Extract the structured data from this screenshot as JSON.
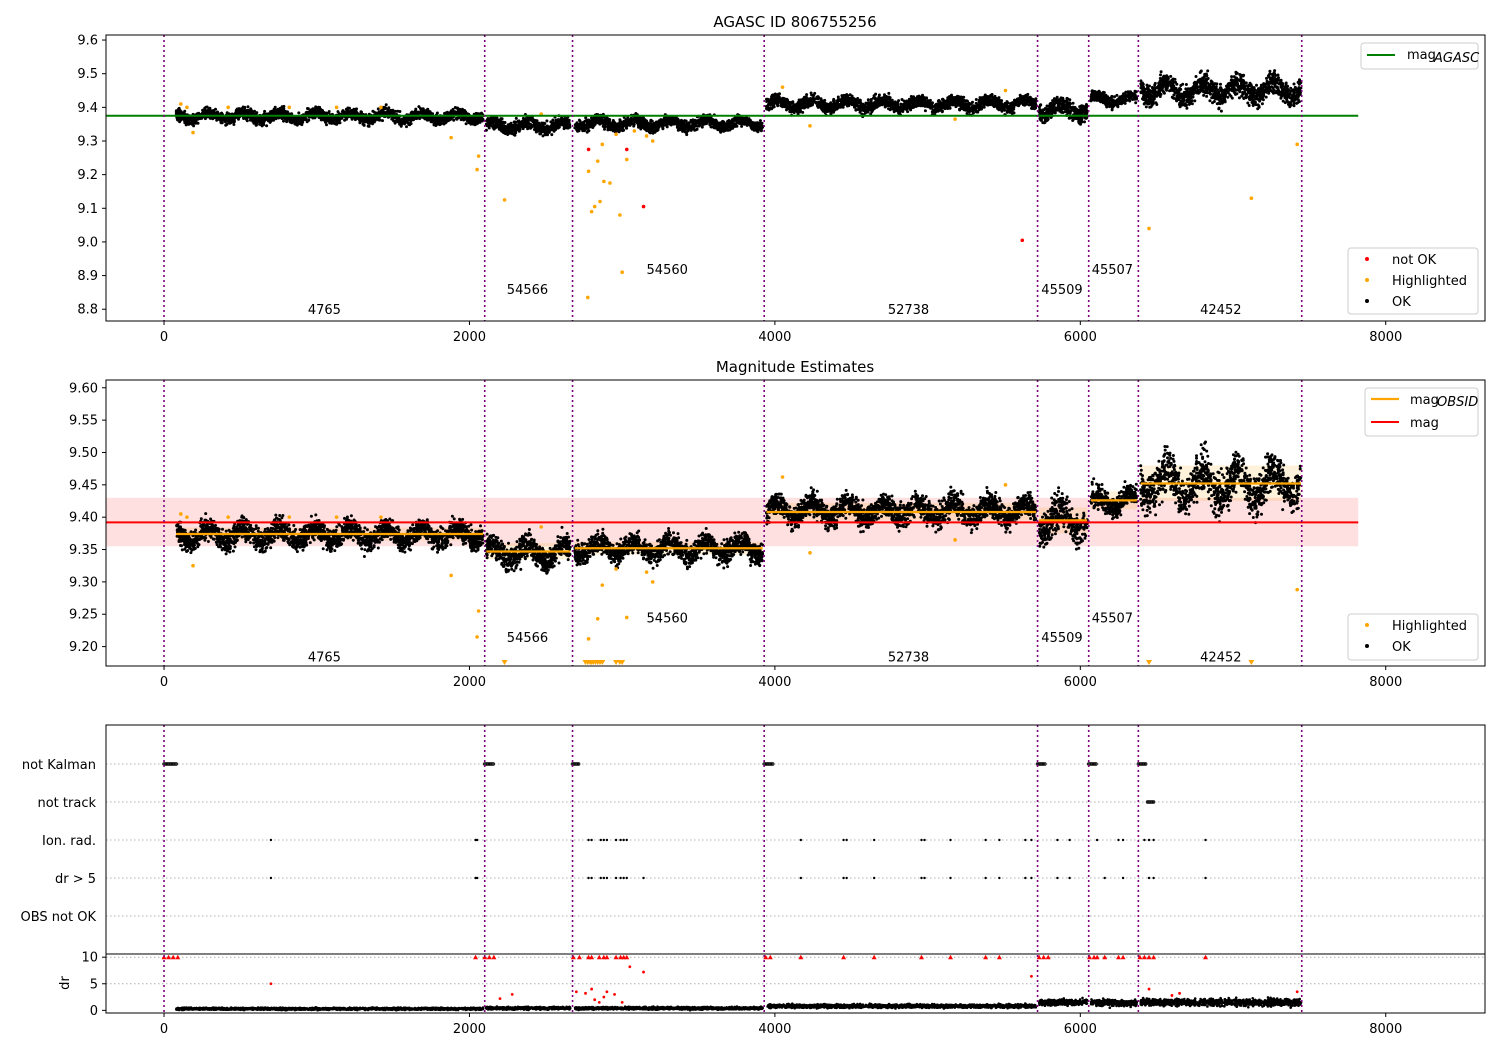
{
  "chart_data": [
    {
      "type": "scatter",
      "title": "AGASC ID 806755256",
      "xlabel": "",
      "ylabel": "",
      "xlim": [
        -380,
        8650
      ],
      "ylim": [
        8.765,
        9.615
      ],
      "xticks": [
        "0",
        "2000",
        "4000",
        "6000",
        "8000"
      ],
      "yticks": [
        "8.8",
        "8.9",
        "9.0",
        "9.1",
        "9.2",
        "9.3",
        "9.4",
        "9.5",
        "9.6"
      ],
      "reference_line": {
        "name": "mag_AGASC",
        "value": 9.375,
        "x_range": [
          -380,
          7820
        ],
        "color": "#008000"
      },
      "observation_boundaries": [
        0,
        2100,
        2675,
        3930,
        5720,
        6055,
        6380,
        7450
      ],
      "obsids": [
        {
          "label": "4765",
          "x": 1050,
          "y": 8.8
        },
        {
          "label": "54566",
          "x": 2380,
          "y": 8.86
        },
        {
          "label": "54560",
          "x": 3295,
          "y": 8.92
        },
        {
          "label": "52738",
          "x": 4875,
          "y": 8.8
        },
        {
          "label": "45509",
          "x": 5880,
          "y": 8.86
        },
        {
          "label": "45507",
          "x": 6210,
          "y": 8.92
        },
        {
          "label": "42452",
          "x": 6920,
          "y": 8.8
        }
      ],
      "ok_segments": [
        {
          "x0": 80,
          "x1": 2090,
          "mean": 9.373,
          "spread": 0.018
        },
        {
          "x0": 2110,
          "x1": 2660,
          "mean": 9.345,
          "spread": 0.02
        },
        {
          "x0": 2690,
          "x1": 3920,
          "mean": 9.352,
          "spread": 0.018
        },
        {
          "x0": 3945,
          "x1": 5710,
          "mean": 9.41,
          "spread": 0.02
        },
        {
          "x0": 5730,
          "x1": 6045,
          "mean": 9.395,
          "spread": 0.03
        },
        {
          "x0": 6070,
          "x1": 6370,
          "mean": 9.425,
          "spread": 0.018
        },
        {
          "x0": 6395,
          "x1": 7445,
          "mean": 9.452,
          "spread": 0.035
        }
      ],
      "highlighted_points": [
        [
          110,
          9.41
        ],
        [
          150,
          9.4
        ],
        [
          190,
          9.325
        ],
        [
          420,
          9.4
        ],
        [
          820,
          9.4
        ],
        [
          1130,
          9.4
        ],
        [
          1420,
          9.4
        ],
        [
          1880,
          9.31
        ],
        [
          2050,
          9.215
        ],
        [
          2060,
          9.255
        ],
        [
          2230,
          9.125
        ],
        [
          2470,
          9.38
        ],
        [
          2775,
          8.835
        ],
        [
          2780,
          9.21
        ],
        [
          2800,
          9.09
        ],
        [
          2820,
          9.105
        ],
        [
          2840,
          9.24
        ],
        [
          2855,
          9.12
        ],
        [
          2870,
          9.29
        ],
        [
          2880,
          9.18
        ],
        [
          2920,
          9.175
        ],
        [
          2960,
          9.32
        ],
        [
          2985,
          9.08
        ],
        [
          3000,
          8.91
        ],
        [
          3030,
          9.245
        ],
        [
          3080,
          9.33
        ],
        [
          3160,
          9.315
        ],
        [
          3200,
          9.3
        ],
        [
          4050,
          9.46
        ],
        [
          4230,
          9.345
        ],
        [
          5180,
          9.365
        ],
        [
          5510,
          9.45
        ],
        [
          6450,
          9.04
        ],
        [
          7120,
          9.13
        ],
        [
          7420,
          9.29
        ]
      ],
      "not_ok_points": [
        [
          2780,
          9.275
        ],
        [
          3030,
          9.275
        ],
        [
          3140,
          9.105
        ],
        [
          5620,
          9.005
        ]
      ],
      "legends": [
        {
          "position": "upper-right",
          "entries": [
            {
              "label": "mag",
              "sub": "AGASC",
              "color": "#008000",
              "marker": "line"
            }
          ]
        },
        {
          "position": "lower-right",
          "entries": [
            {
              "label": "not OK",
              "color": "#ff0000",
              "marker": "dot"
            },
            {
              "label": "Highlighted",
              "color": "#ffa500",
              "marker": "dot"
            },
            {
              "label": "OK",
              "color": "#000000",
              "marker": "dot"
            }
          ]
        }
      ]
    },
    {
      "type": "scatter",
      "title": "Magnitude Estimates",
      "xlabel": "",
      "ylabel": "",
      "xlim": [
        -380,
        8650
      ],
      "ylim": [
        9.17,
        9.612
      ],
      "xticks": [
        "0",
        "2000",
        "4000",
        "6000",
        "8000"
      ],
      "yticks": [
        "9.20",
        "9.25",
        "9.30",
        "9.35",
        "9.40",
        "9.45",
        "9.50",
        "9.55",
        "9.60"
      ],
      "mag_line": {
        "name": "mag",
        "value": 9.392,
        "band": [
          9.355,
          9.43
        ],
        "x_range": [
          -380,
          7820
        ],
        "color": "#ff0000"
      },
      "mag_obsid_segments": [
        {
          "x0": 80,
          "x1": 2090,
          "value": 9.374
        },
        {
          "x0": 2110,
          "x1": 2660,
          "value": 9.347
        },
        {
          "x0": 2690,
          "x1": 3920,
          "value": 9.352
        },
        {
          "x0": 3945,
          "x1": 5710,
          "value": 9.408
        },
        {
          "x0": 5730,
          "x1": 6045,
          "value": 9.395
        },
        {
          "x0": 6070,
          "x1": 6370,
          "value": 9.426
        },
        {
          "x0": 6395,
          "x1": 7445,
          "value": 9.452
        }
      ],
      "mag_obsid_bands": [
        {
          "x0": 80,
          "x1": 2090,
          "lo": 9.364,
          "hi": 9.384
        },
        {
          "x0": 2110,
          "x1": 2660,
          "lo": 9.335,
          "hi": 9.36
        },
        {
          "x0": 2690,
          "x1": 3920,
          "lo": 9.342,
          "hi": 9.362
        },
        {
          "x0": 3945,
          "x1": 5710,
          "lo": 9.395,
          "hi": 9.422
        },
        {
          "x0": 5730,
          "x1": 6045,
          "lo": 9.375,
          "hi": 9.415
        },
        {
          "x0": 6070,
          "x1": 6370,
          "lo": 9.412,
          "hi": 9.44
        },
        {
          "x0": 6395,
          "x1": 7445,
          "lo": 9.425,
          "hi": 9.48
        }
      ],
      "observation_boundaries": [
        0,
        2100,
        2675,
        3930,
        5720,
        6055,
        6380,
        7450
      ],
      "obsids": [
        {
          "label": "4765",
          "x": 1050,
          "y": 9.185
        },
        {
          "label": "54566",
          "x": 2380,
          "y": 9.215
        },
        {
          "label": "54560",
          "x": 3295,
          "y": 9.245
        },
        {
          "label": "52738",
          "x": 4875,
          "y": 9.185
        },
        {
          "label": "45509",
          "x": 5880,
          "y": 9.215
        },
        {
          "label": "45507",
          "x": 6210,
          "y": 9.245
        },
        {
          "label": "42452",
          "x": 6920,
          "y": 9.185
        }
      ],
      "highlighted_points": [
        [
          110,
          9.405
        ],
        [
          150,
          9.4
        ],
        [
          190,
          9.325
        ],
        [
          420,
          9.4
        ],
        [
          820,
          9.4
        ],
        [
          1130,
          9.4
        ],
        [
          1420,
          9.4
        ],
        [
          1880,
          9.31
        ],
        [
          2050,
          9.215
        ],
        [
          2060,
          9.255
        ],
        [
          2470,
          9.385
        ],
        [
          2780,
          9.212
        ],
        [
          2840,
          9.243
        ],
        [
          2870,
          9.295
        ],
        [
          2960,
          9.32
        ],
        [
          3030,
          9.245
        ],
        [
          3160,
          9.315
        ],
        [
          3200,
          9.3
        ],
        [
          4050,
          9.462
        ],
        [
          4230,
          9.345
        ],
        [
          5180,
          9.365
        ],
        [
          5510,
          9.45
        ],
        [
          7420,
          9.288
        ]
      ],
      "clipped_points": [
        2230,
        2760,
        2775,
        2790,
        2800,
        2810,
        2825,
        2840,
        2855,
        2870,
        2960,
        2985,
        3000,
        6450,
        7120
      ],
      "legends": [
        {
          "position": "upper-right",
          "entries": [
            {
              "label": "mag",
              "sub": "OBSID",
              "color": "#ffa500",
              "marker": "line"
            },
            {
              "label": "mag",
              "sub": "",
              "color": "#ff0000",
              "marker": "line"
            }
          ]
        },
        {
          "position": "lower-right",
          "entries": [
            {
              "label": "Highlighted",
              "color": "#ffa500",
              "marker": "dot"
            },
            {
              "label": "OK",
              "color": "#000000",
              "marker": "dot"
            }
          ]
        }
      ]
    },
    {
      "type": "scatter",
      "title": "",
      "xlabel": "",
      "xlim": [
        -380,
        8650
      ],
      "xticks": [
        "0",
        "2000",
        "4000",
        "6000",
        "8000"
      ],
      "flag_rows": [
        "not Kalman",
        "not track",
        "Ion. rad.",
        "dr > 5",
        "OBS not OK"
      ],
      "flag_points": {
        "not Kalman": [
          [
            0,
            80
          ],
          [
            2100,
            2160
          ],
          [
            2675,
            2720
          ],
          [
            3930,
            3990
          ],
          [
            5720,
            5770
          ],
          [
            6055,
            6110
          ],
          [
            6380,
            6430
          ]
        ],
        "not track": [
          [
            6440,
            6480
          ]
        ],
        "Ion. rad.": [
          700,
          2040,
          2050,
          2780,
          2800,
          2860,
          2880,
          2900,
          2960,
          2990,
          3010,
          3030,
          4170,
          4450,
          4470,
          4650,
          4960,
          4980,
          5150,
          5380,
          5470,
          5640,
          5680,
          5850,
          5930,
          6110,
          6250,
          6280,
          6420,
          6450,
          6480,
          6820
        ],
        "dr > 5": [
          700,
          2040,
          2050,
          2780,
          2800,
          2860,
          2880,
          2900,
          2960,
          2990,
          3010,
          3030,
          3140,
          4170,
          4450,
          4470,
          4650,
          4960,
          4980,
          5150,
          5380,
          5470,
          5640,
          5680,
          5850,
          5930,
          6160,
          6280,
          6450,
          6480,
          6820
        ],
        "OBS not OK": []
      },
      "dr_ylabel": "dr",
      "dr_yticks": [
        "0",
        "5",
        "10"
      ],
      "dr_ylim": [
        -0.5,
        10.6
      ],
      "dr_segments": [
        {
          "x0": 80,
          "x1": 2090,
          "mean": 0.3,
          "spread": 0.25
        },
        {
          "x0": 2110,
          "x1": 2660,
          "mean": 0.4,
          "spread": 0.3
        },
        {
          "x0": 2690,
          "x1": 3920,
          "mean": 0.4,
          "spread": 0.3
        },
        {
          "x0": 3945,
          "x1": 5710,
          "mean": 0.8,
          "spread": 0.4
        },
        {
          "x0": 5730,
          "x1": 6045,
          "mean": 1.5,
          "spread": 0.7
        },
        {
          "x0": 6070,
          "x1": 6370,
          "mean": 1.4,
          "spread": 0.7
        },
        {
          "x0": 6395,
          "x1": 7445,
          "mean": 1.5,
          "spread": 0.8
        }
      ],
      "dr_red_capped": [
        0,
        30,
        60,
        90,
        2040,
        2100,
        2130,
        2160,
        2680,
        2720,
        2780,
        2800,
        2850,
        2880,
        2900,
        2960,
        2990,
        3010,
        3030,
        3940,
        3970,
        4170,
        4450,
        4650,
        4960,
        5150,
        5380,
        5470,
        5730,
        5760,
        5790,
        6060,
        6090,
        6110,
        6160,
        6250,
        6280,
        6390,
        6420,
        6450,
        6480,
        6820
      ],
      "dr_red_points": [
        [
          700,
          5
        ],
        [
          2200,
          2.2
        ],
        [
          2280,
          3
        ],
        [
          2700,
          3.5
        ],
        [
          2760,
          3.2
        ],
        [
          2800,
          4
        ],
        [
          2820,
          2
        ],
        [
          2850,
          1.5
        ],
        [
          2880,
          2.5
        ],
        [
          2900,
          3.5
        ],
        [
          2950,
          3
        ],
        [
          3000,
          1.5
        ],
        [
          3050,
          8.2
        ],
        [
          3140,
          7.2
        ],
        [
          5680,
          6.4
        ],
        [
          6450,
          4
        ],
        [
          6600,
          2.8
        ],
        [
          6650,
          3.2
        ],
        [
          7420,
          3.5
        ]
      ],
      "observation_boundaries": [
        0,
        2100,
        2675,
        3930,
        5720,
        6055,
        6380,
        7450
      ]
    }
  ]
}
